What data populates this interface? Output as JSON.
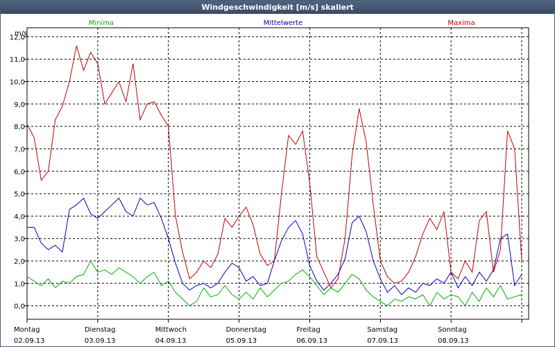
{
  "window": {
    "title": "Windgeschwindigkeit [m/s] skaliert"
  },
  "chart_data": {
    "type": "line",
    "title": "Windgeschwindigkeit [m/s] skaliert",
    "ylabel": "m/s",
    "ylim": [
      -0.6,
      12.4
    ],
    "yticks": [
      0,
      1,
      2,
      3,
      4,
      5,
      6,
      7,
      8,
      9,
      10,
      11,
      12
    ],
    "ytick_labels": [
      "0,0",
      "1,0",
      "2,0",
      "3,0",
      "4,0",
      "5,0",
      "6,0",
      "7,0",
      "8,0",
      "9,0",
      "10,0",
      "11,0",
      "12,0"
    ],
    "xlim": [
      0,
      7.0
    ],
    "x_ticks": [
      0,
      1,
      2,
      3,
      4,
      5,
      6,
      7
    ],
    "day_labels": [
      {
        "x": 0,
        "weekday": "Montag",
        "date": "02.09.13"
      },
      {
        "x": 1,
        "weekday": "Dienstag",
        "date": "03.09.13"
      },
      {
        "x": 2,
        "weekday": "Mittwoch",
        "date": "04.09.13"
      },
      {
        "x": 3,
        "weekday": "Donnerstag",
        "date": "05.09.13"
      },
      {
        "x": 4,
        "weekday": "Freitag",
        "date": "06.09.13"
      },
      {
        "x": 5,
        "weekday": "Samstag",
        "date": "07.09.13"
      },
      {
        "x": 6,
        "weekday": "Sonntag",
        "date": "08.09.13"
      }
    ],
    "grid": true,
    "x": [
      0.0,
      0.1,
      0.2,
      0.3,
      0.4,
      0.5,
      0.6,
      0.7,
      0.8,
      0.9,
      1.0,
      1.1,
      1.2,
      1.3,
      1.4,
      1.5,
      1.6,
      1.7,
      1.8,
      1.9,
      2.0,
      2.1,
      2.2,
      2.3,
      2.4,
      2.5,
      2.6,
      2.7,
      2.8,
      2.9,
      3.0,
      3.1,
      3.2,
      3.3,
      3.4,
      3.5,
      3.6,
      3.7,
      3.8,
      3.9,
      4.0,
      4.1,
      4.2,
      4.3,
      4.4,
      4.5,
      4.6,
      4.7,
      4.8,
      4.9,
      5.0,
      5.1,
      5.2,
      5.3,
      5.4,
      5.5,
      5.6,
      5.7,
      5.8,
      5.9,
      6.0,
      6.1,
      6.2,
      6.3,
      6.4,
      6.5,
      6.6,
      6.7,
      6.8,
      6.9,
      7.0
    ],
    "series": [
      {
        "name": "Minima",
        "color": "#00b000",
        "values": [
          1.3,
          1.1,
          0.9,
          1.2,
          0.8,
          1.1,
          1.0,
          1.3,
          1.4,
          2.0,
          1.5,
          1.6,
          1.4,
          1.7,
          1.5,
          1.3,
          1.0,
          1.3,
          1.5,
          0.9,
          1.1,
          0.6,
          0.3,
          0.0,
          0.2,
          0.8,
          0.4,
          0.5,
          0.9,
          0.5,
          0.3,
          0.6,
          0.3,
          0.8,
          0.4,
          0.7,
          1.0,
          1.1,
          1.4,
          1.6,
          1.3,
          0.9,
          0.5,
          0.8,
          0.6,
          1.0,
          1.4,
          1.2,
          0.7,
          0.4,
          0.2,
          0.0,
          0.3,
          0.2,
          0.4,
          0.3,
          0.5,
          0.0,
          0.6,
          0.3,
          0.5,
          0.4,
          0.0,
          0.6,
          0.2,
          0.8,
          0.4,
          0.9,
          0.3,
          0.4,
          0.5
        ]
      },
      {
        "name": "Mittelwerte",
        "color": "#0000c0",
        "values": [
          3.5,
          3.5,
          2.8,
          2.5,
          2.7,
          2.4,
          4.3,
          4.5,
          4.8,
          4.1,
          3.9,
          4.2,
          4.5,
          4.8,
          4.2,
          4.0,
          4.8,
          4.5,
          4.6,
          3.9,
          3.0,
          1.9,
          1.0,
          0.7,
          0.9,
          1.0,
          0.8,
          1.0,
          1.5,
          1.9,
          1.7,
          1.1,
          1.3,
          0.9,
          1.0,
          2.0,
          2.9,
          3.5,
          3.8,
          3.2,
          1.8,
          1.1,
          0.7,
          1.0,
          1.4,
          2.1,
          3.7,
          4.0,
          3.3,
          2.0,
          1.2,
          0.6,
          0.9,
          0.5,
          0.8,
          0.6,
          1.0,
          0.9,
          1.2,
          1.0,
          1.5,
          0.8,
          1.3,
          0.9,
          1.5,
          1.1,
          1.6,
          3.0,
          3.2,
          0.9,
          1.4
        ]
      },
      {
        "name": "Maxima",
        "color": "#c00000",
        "values": [
          8.1,
          7.5,
          5.6,
          6.0,
          8.3,
          8.9,
          10.0,
          11.6,
          10.5,
          11.3,
          10.8,
          9.0,
          9.5,
          10.0,
          9.1,
          10.8,
          8.3,
          9.0,
          9.1,
          8.5,
          8.0,
          4.0,
          2.4,
          1.2,
          1.5,
          2.0,
          1.7,
          2.3,
          3.9,
          3.5,
          4.0,
          4.4,
          3.6,
          2.3,
          1.8,
          2.0,
          5.0,
          7.6,
          7.2,
          7.8,
          5.5,
          2.2,
          1.5,
          0.8,
          1.2,
          3.0,
          6.7,
          8.8,
          7.3,
          4.5,
          2.0,
          1.3,
          1.0,
          1.1,
          1.5,
          2.2,
          3.2,
          3.9,
          3.4,
          4.2,
          1.5,
          1.2,
          2.0,
          1.5,
          3.8,
          4.2,
          1.5,
          2.5,
          7.8,
          7.0,
          2.0
        ]
      }
    ]
  }
}
